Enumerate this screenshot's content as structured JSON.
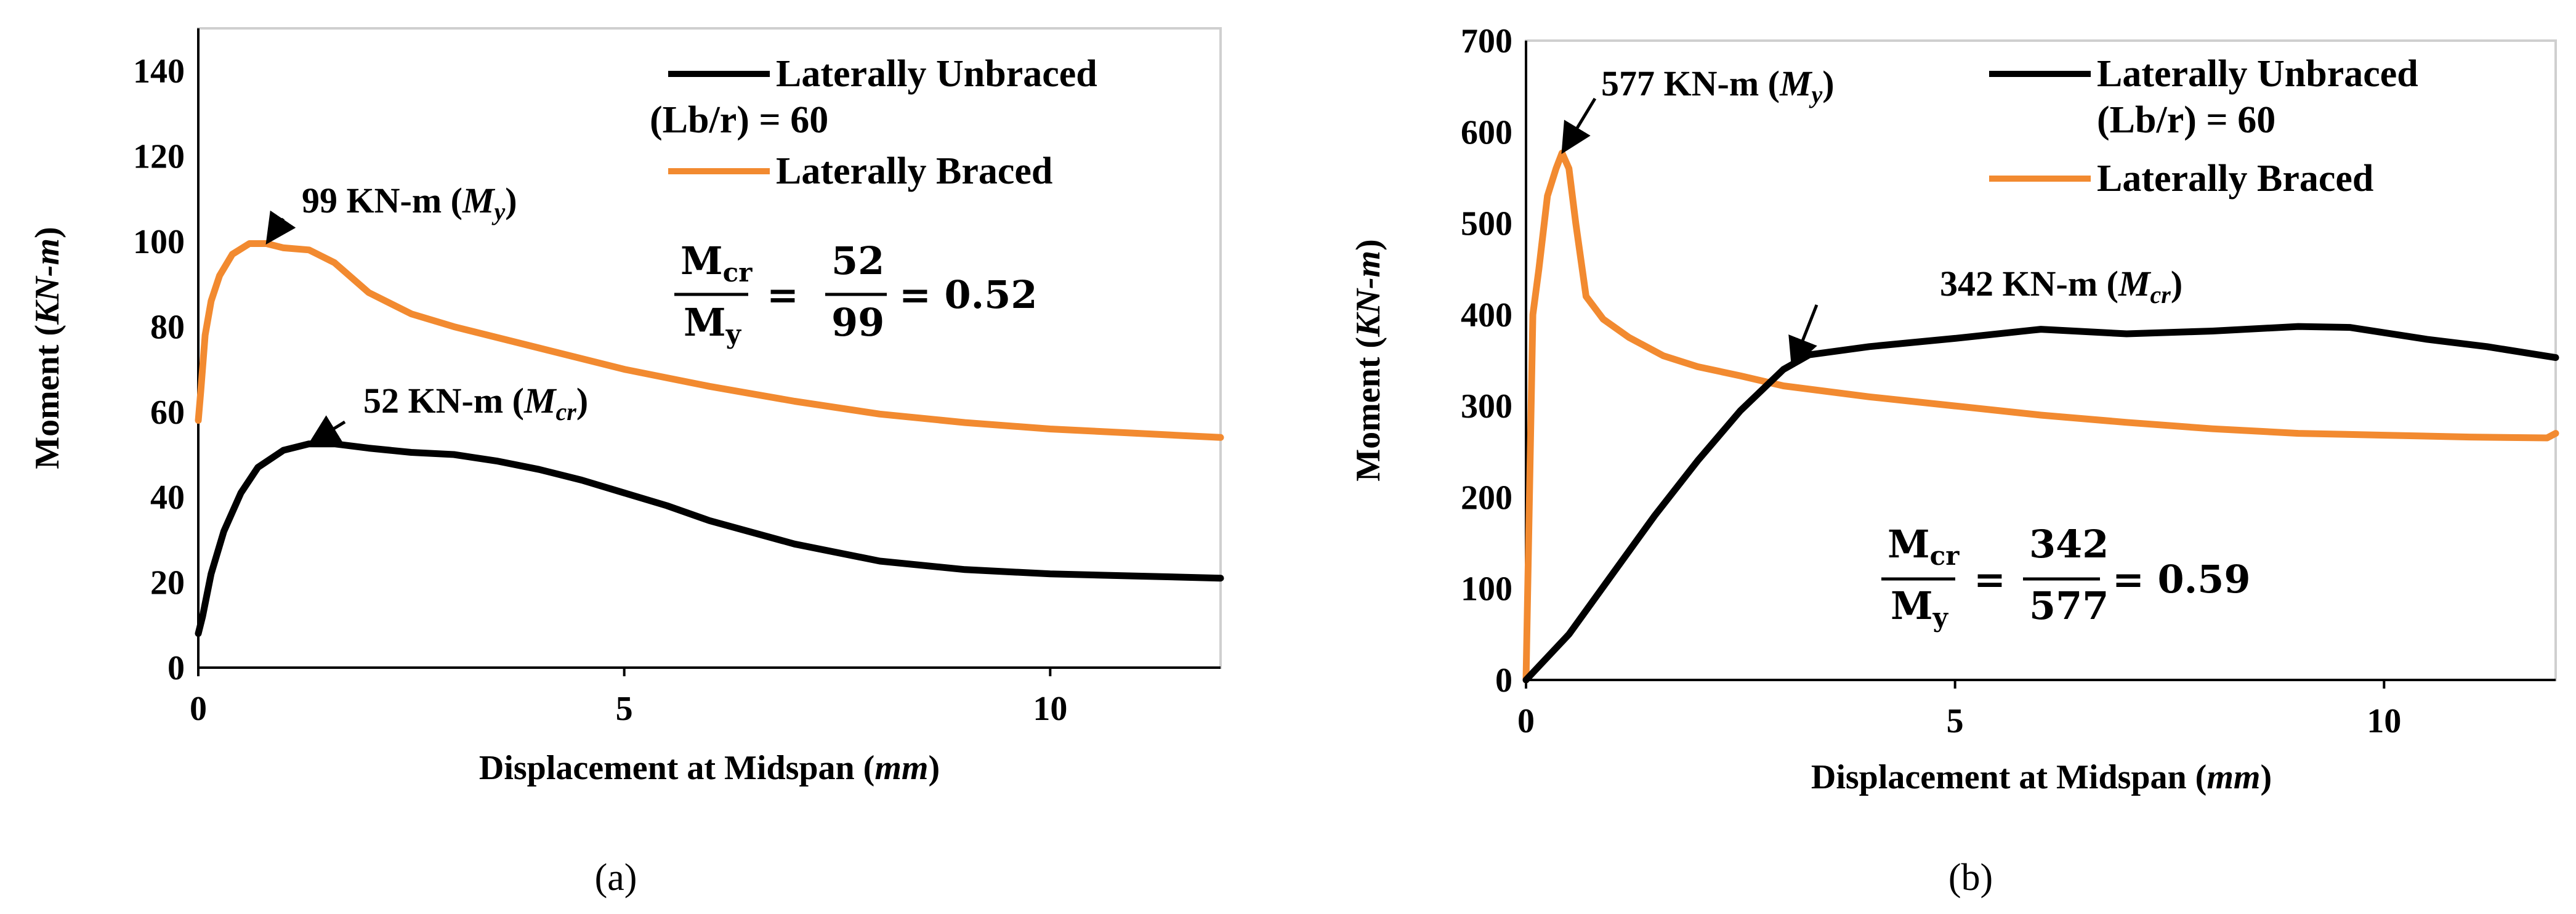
{
  "chart_data": [
    {
      "type": "line",
      "panel": "(a)",
      "xlabel_main": "Displacement at Midspan (",
      "xlabel_unit": "mm",
      "xlabel_close": ")",
      "ylabel_main": "Moment  (",
      "ylabel_unit": "KN-m",
      "ylabel_close": ")",
      "xlim": [
        0,
        12
      ],
      "ylim": [
        0,
        150
      ],
      "xticks": [
        0,
        5,
        10
      ],
      "yticks": [
        0,
        20,
        40,
        60,
        80,
        100,
        120,
        140
      ],
      "series": [
        {
          "name": "Laterally Braced",
          "color": "#F28A30",
          "x": [
            0,
            0.03,
            0.08,
            0.15,
            0.25,
            0.4,
            0.6,
            0.8,
            1.0,
            1.3,
            1.6,
            2.0,
            2.5,
            3.0,
            4.0,
            5.0,
            6.0,
            7.0,
            8.0,
            9.0,
            10.0,
            11.0,
            12.0
          ],
          "y": [
            58,
            65,
            78,
            86,
            92,
            97,
            99.5,
            99.5,
            98.5,
            98,
            95,
            88,
            83,
            80,
            75,
            70,
            66,
            62.5,
            59.5,
            57.5,
            56,
            55,
            54
          ]
        },
        {
          "name": "Laterally Unbraced (Lb/r) = 60",
          "color": "#000000",
          "x": [
            0,
            0.05,
            0.15,
            0.3,
            0.5,
            0.7,
            1.0,
            1.3,
            1.6,
            2.0,
            2.5,
            3.0,
            3.5,
            4.0,
            4.5,
            5.0,
            5.5,
            6.0,
            7.0,
            8.0,
            9.0,
            10.0,
            11.0,
            12.0
          ],
          "y": [
            8,
            12,
            22,
            32,
            41,
            47,
            51,
            52.5,
            52.5,
            51.5,
            50.5,
            50,
            48.5,
            46.5,
            44,
            41,
            38,
            34.5,
            29,
            25,
            23,
            22,
            21.5,
            21
          ]
        }
      ],
      "annotations": [
        {
          "text": "99 KN-m (",
          "sym": "M",
          "sub": "y",
          "close": ")",
          "x": 0.8,
          "y": 99.5
        },
        {
          "text": "52 KN-m (",
          "sym": "M",
          "sub": "cr",
          "close": ")",
          "x": 1.3,
          "y": 52.5
        }
      ],
      "ratio": {
        "num": "52",
        "den": "99",
        "value": "= 0.52"
      }
    },
    {
      "type": "line",
      "panel": "(b)",
      "xlabel_main": "Displacement at Midspan (",
      "xlabel_unit": "mm",
      "xlabel_close": ")",
      "ylabel_main": "Moment  (",
      "ylabel_unit": "KN-m",
      "ylabel_close": ")",
      "xlim": [
        0,
        12
      ],
      "ylim": [
        0,
        700
      ],
      "xticks": [
        0,
        5,
        10
      ],
      "yticks": [
        0,
        100,
        200,
        300,
        400,
        500,
        600,
        700
      ],
      "series": [
        {
          "name": "Laterally Braced",
          "color": "#F28A30",
          "x": [
            0,
            0.08,
            0.15,
            0.25,
            0.35,
            0.42,
            0.5,
            0.58,
            0.7,
            0.9,
            1.2,
            1.6,
            2.0,
            2.5,
            3.0,
            4.0,
            5.0,
            6.0,
            7.0,
            8.0,
            9.0,
            10.0,
            11.0,
            11.9,
            12.0
          ],
          "y": [
            0,
            400,
            450,
            530,
            560,
            577,
            560,
            500,
            420,
            395,
            375,
            355,
            343,
            333,
            322,
            310,
            300,
            290,
            282,
            275,
            270,
            268,
            266,
            265,
            270
          ]
        },
        {
          "name": "Laterally Unbraced (Lb/r) = 60",
          "color": "#000000",
          "x": [
            0,
            0.5,
            1.0,
            1.5,
            2.0,
            2.5,
            3.0,
            3.3,
            4.0,
            5.0,
            6.0,
            7.0,
            8.0,
            9.0,
            9.6,
            10.5,
            11.2,
            12.0
          ],
          "y": [
            0,
            50,
            115,
            180,
            240,
            295,
            340,
            356,
            365,
            374,
            384,
            379,
            382,
            387,
            386,
            373,
            365,
            353
          ]
        }
      ],
      "annotations": [
        {
          "text": "577 KN-m (",
          "sym": "M",
          "sub": "y",
          "close": ")",
          "x": 0.42,
          "y": 577
        },
        {
          "text": "342 KN-m (",
          "sym": "M",
          "sub": "cr",
          "close": ")",
          "x": 3.1,
          "y": 342
        }
      ],
      "ratio": {
        "num": "342",
        "den": "577",
        "value": "= 0.59"
      }
    }
  ],
  "legend": {
    "unbraced_line1": "Laterally Unbraced",
    "unbraced_line2": "(Lb/r) = 60",
    "braced": "Laterally Braced"
  },
  "ratio_labels": {
    "num_sym": "M",
    "num_sub": "cr",
    "den_sym": "M",
    "den_sub": "y",
    "eq": "="
  }
}
